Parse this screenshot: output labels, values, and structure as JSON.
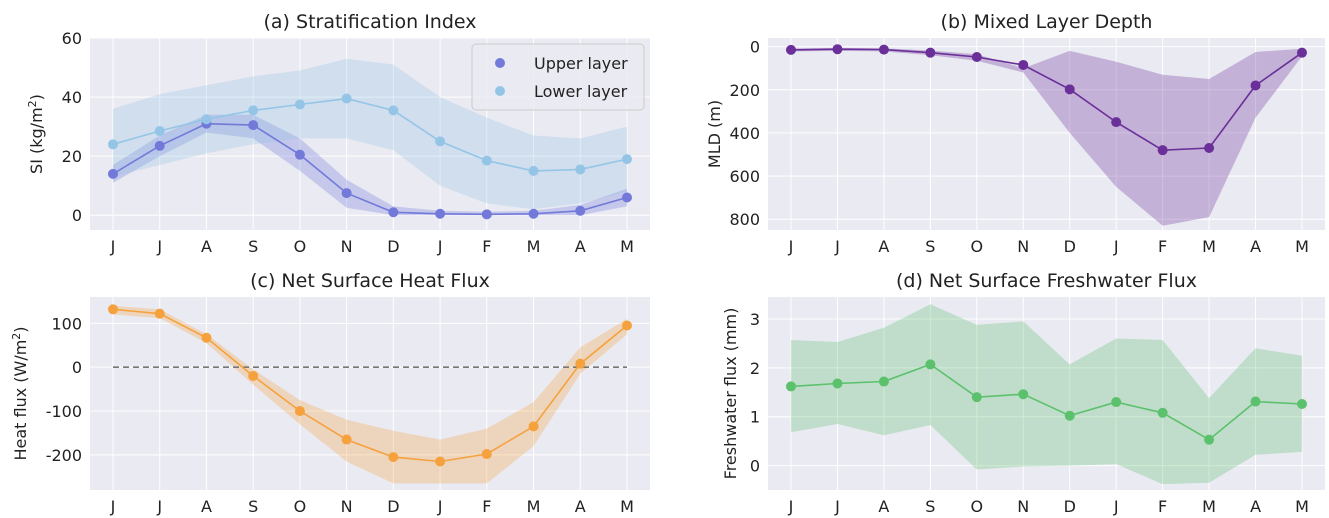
{
  "chart_data": [
    {
      "type": "line",
      "title": "(a) Stratification Index",
      "ylabel_main": "SI (kg/m",
      "ylabel_sup": "2",
      "ylabel_tail": ")",
      "categories": [
        "J",
        "J",
        "A",
        "S",
        "O",
        "N",
        "D",
        "J",
        "F",
        "M",
        "A",
        "M"
      ],
      "ylim": [
        -5,
        60
      ],
      "yticks": [
        0,
        20,
        40,
        60
      ],
      "grid": true,
      "legend_position": "top-right",
      "series": [
        {
          "name": "Upper layer",
          "color": "#7279d9",
          "values": [
            14,
            23.5,
            31,
            30.5,
            20.5,
            7.5,
            1,
            0.5,
            0.3,
            0.5,
            1.5,
            6
          ],
          "band_upper": [
            17,
            27,
            34,
            34,
            26,
            12,
            3,
            1.5,
            1.2,
            1.5,
            3.5,
            9
          ],
          "band_lower": [
            11,
            20,
            28,
            26,
            15,
            2.5,
            0,
            0,
            0,
            0,
            0,
            3
          ]
        },
        {
          "name": "Lower layer",
          "color": "#95c5e6",
          "values": [
            24,
            28.5,
            32.5,
            35.5,
            37.5,
            39.5,
            35.5,
            25,
            18.5,
            15,
            15.5,
            19
          ],
          "band_upper": [
            36,
            41,
            44,
            47,
            49,
            53,
            51,
            40,
            33,
            27,
            26,
            30
          ],
          "band_lower": [
            13,
            17,
            21,
            24,
            26,
            26,
            22,
            10,
            4,
            2,
            4,
            8
          ]
        }
      ]
    },
    {
      "type": "line",
      "title": "(b) Mixed Layer Depth",
      "ylabel_main": "MLD (m)",
      "categories": [
        "J",
        "J",
        "A",
        "S",
        "O",
        "N",
        "D",
        "J",
        "F",
        "M",
        "A",
        "M"
      ],
      "ylim": [
        850,
        -40
      ],
      "yticks": [
        0,
        200,
        400,
        600,
        800
      ],
      "inverted_y": true,
      "grid": true,
      "series": [
        {
          "color": "#6a2f98",
          "values": [
            15,
            12,
            14,
            28,
            48,
            85,
            198,
            350,
            480,
            470,
            180,
            28
          ],
          "band_upper": [
            8,
            6,
            8,
            18,
            35,
            100,
            20,
            70,
            130,
            150,
            25,
            10
          ],
          "band_lower": [
            22,
            20,
            22,
            40,
            65,
            120,
            400,
            650,
            830,
            790,
            330,
            45
          ]
        }
      ]
    },
    {
      "type": "line",
      "title": "(c) Net Surface Heat Flux",
      "ylabel_main": "Heat flux (W/m",
      "ylabel_sup": "2",
      "ylabel_tail": ")",
      "categories": [
        "J",
        "J",
        "A",
        "S",
        "O",
        "N",
        "D",
        "J",
        "F",
        "M",
        "A",
        "M"
      ],
      "ylim": [
        -280,
        160
      ],
      "yticks": [
        100,
        0,
        -100,
        -200
      ],
      "reference_line": 0,
      "grid": true,
      "series": [
        {
          "color": "#f5a23e",
          "values": [
            132,
            122,
            67,
            -20,
            -100,
            -165,
            -205,
            -215,
            -198,
            -135,
            8,
            95
          ],
          "band_upper": [
            140,
            132,
            75,
            -5,
            -75,
            -120,
            -145,
            -165,
            -140,
            -80,
            45,
            110
          ],
          "band_lower": [
            120,
            112,
            55,
            -40,
            -130,
            -215,
            -265,
            -265,
            -265,
            -180,
            -15,
            75
          ]
        }
      ]
    },
    {
      "type": "line",
      "title": "(d) Net Surface Freshwater Flux",
      "ylabel_main": "Freshwater flux (mm)",
      "categories": [
        "J",
        "J",
        "A",
        "S",
        "O",
        "N",
        "D",
        "J",
        "F",
        "M",
        "A",
        "M"
      ],
      "ylim": [
        -0.5,
        3.45
      ],
      "yticks": [
        0,
        1,
        2,
        3
      ],
      "grid": true,
      "series": [
        {
          "color": "#5cc16c",
          "values": [
            1.62,
            1.68,
            1.72,
            2.07,
            1.4,
            1.46,
            1.02,
            1.3,
            1.08,
            0.53,
            1.31,
            1.26
          ],
          "band_upper": [
            2.57,
            2.53,
            2.82,
            3.3,
            2.88,
            2.95,
            2.07,
            2.6,
            2.57,
            1.38,
            2.4,
            2.25
          ],
          "band_lower": [
            0.68,
            0.85,
            0.62,
            0.83,
            -0.08,
            -0.02,
            0.0,
            0.03,
            -0.38,
            -0.35,
            0.22,
            0.28
          ]
        }
      ]
    }
  ]
}
